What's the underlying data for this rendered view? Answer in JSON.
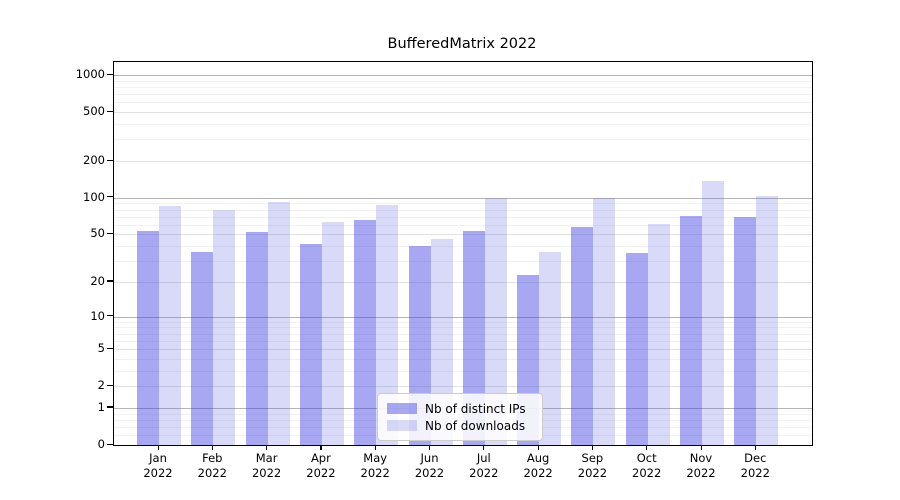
{
  "title": "BufferedMatrix 2022",
  "colors": {
    "bar_distinct_ips": "rgba(62,62,226,0.45)",
    "bar_downloads": "rgba(103,103,227,0.25)",
    "grid_major": "#b5b5b5",
    "grid_minor": "#e2e2e2",
    "grid_faint": "#f1f1f1",
    "spine": "#000000",
    "background": "#ffffff"
  },
  "legend": {
    "items": [
      {
        "label": "Nb of distinct IPs",
        "color": "rgba(62,62,226,0.45)"
      },
      {
        "label": "Nb of downloads",
        "color": "rgba(103,103,227,0.25)"
      }
    ]
  },
  "chart_data": {
    "type": "bar",
    "title": "BufferedMatrix 2022",
    "categories": [
      "Jan 2022",
      "Feb 2022",
      "Mar 2022",
      "Apr 2022",
      "May 2022",
      "Jun 2022",
      "Jul 2022",
      "Aug 2022",
      "Sep 2022",
      "Oct 2022",
      "Nov 2022",
      "Dec 2022"
    ],
    "series": [
      {
        "name": "Nb of distinct IPs",
        "values": [
          53,
          36,
          52,
          42,
          66,
          40,
          53,
          23,
          58,
          35,
          71,
          70
        ]
      },
      {
        "name": "Nb of downloads",
        "values": [
          85,
          80,
          92,
          63,
          88,
          46,
          100,
          36,
          100,
          61,
          137,
          104
        ]
      }
    ],
    "xlabel": "",
    "ylabel": "",
    "yscale": "symlog",
    "y_ticks": [
      0,
      1,
      2,
      5,
      10,
      20,
      50,
      100,
      200,
      500,
      1000
    ],
    "ylim": [
      0,
      1280
    ],
    "grid": true,
    "legend_position": "lower center"
  }
}
